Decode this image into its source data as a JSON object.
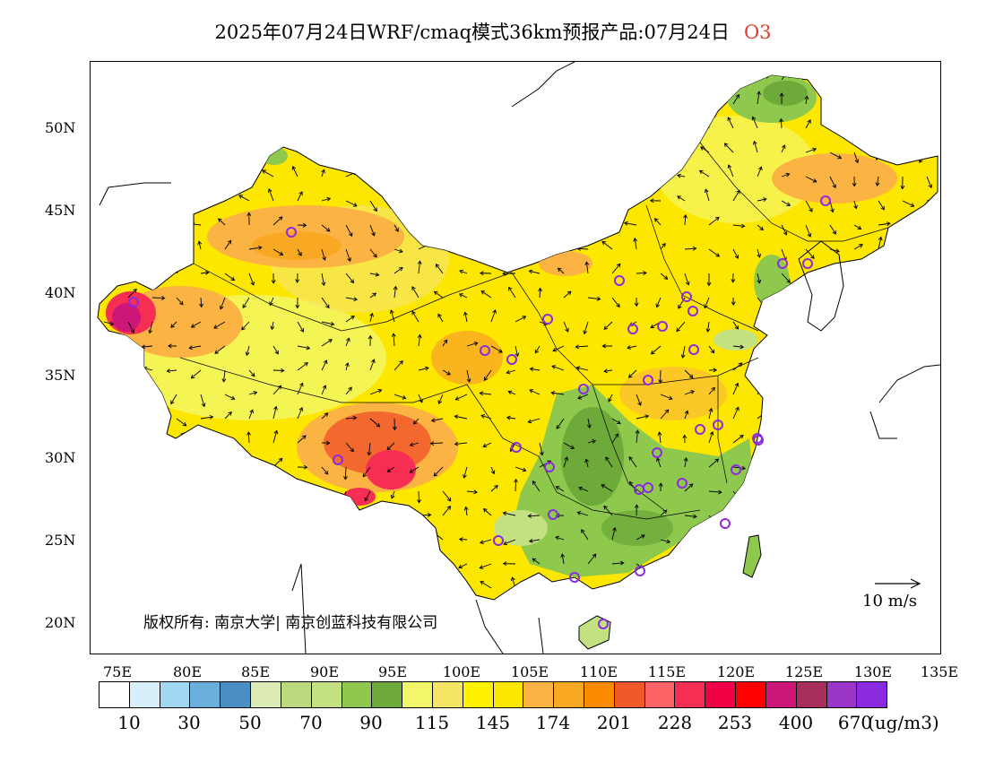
{
  "title": {
    "main": "2025年07月24日WRF/cmaq模式36km预报产品:07月24日",
    "product": "O3"
  },
  "axes": {
    "lat_labels": [
      "50N",
      "45N",
      "40N",
      "35N",
      "30N",
      "25N",
      "20N"
    ],
    "lon_labels": [
      "75E",
      "80E",
      "85E",
      "90E",
      "95E",
      "100E",
      "105E",
      "110E",
      "115E",
      "120E",
      "125E",
      "130E",
      "135E"
    ]
  },
  "copyright": "版权所有: 南京大学| 南京创蓝科技有限公司",
  "wind_reference": "10 m/s",
  "colorbar": {
    "colors": [
      "#ffffff",
      "#d6effa",
      "#a0d8f2",
      "#6aaedc",
      "#4a8fc4",
      "#dceab6",
      "#bdd97e",
      "#c4e182",
      "#8ec94e",
      "#6daa3a",
      "#f2f76a",
      "#f4e664",
      "#fff200",
      "#fde600",
      "#fbb443",
      "#f9a824",
      "#fa8a00",
      "#f05a2a",
      "#fd6468",
      "#f62e54",
      "#f00044",
      "#ff0000",
      "#cc1678",
      "#a82e5c",
      "#9c36c8",
      "#8a2be2"
    ],
    "labels": [
      "10",
      "30",
      "50",
      "70",
      "90",
      "115",
      "145",
      "174",
      "201",
      "228",
      "253",
      "400",
      "670"
    ],
    "unit": "(ug/m3)"
  },
  "map_colors": {
    "ocean": "#ffffff",
    "yellow": "#fde600",
    "light_yellow": "#f2f76a",
    "orange": "#fbb443",
    "dark_orange": "#f9a824",
    "red_orange": "#f05a2a",
    "red": "#f62e54",
    "magenta": "#cc1678",
    "green": "#8ec94e",
    "dark_green": "#6daa3a",
    "light_green": "#c4e182",
    "station_marker": "#8a2be2"
  }
}
